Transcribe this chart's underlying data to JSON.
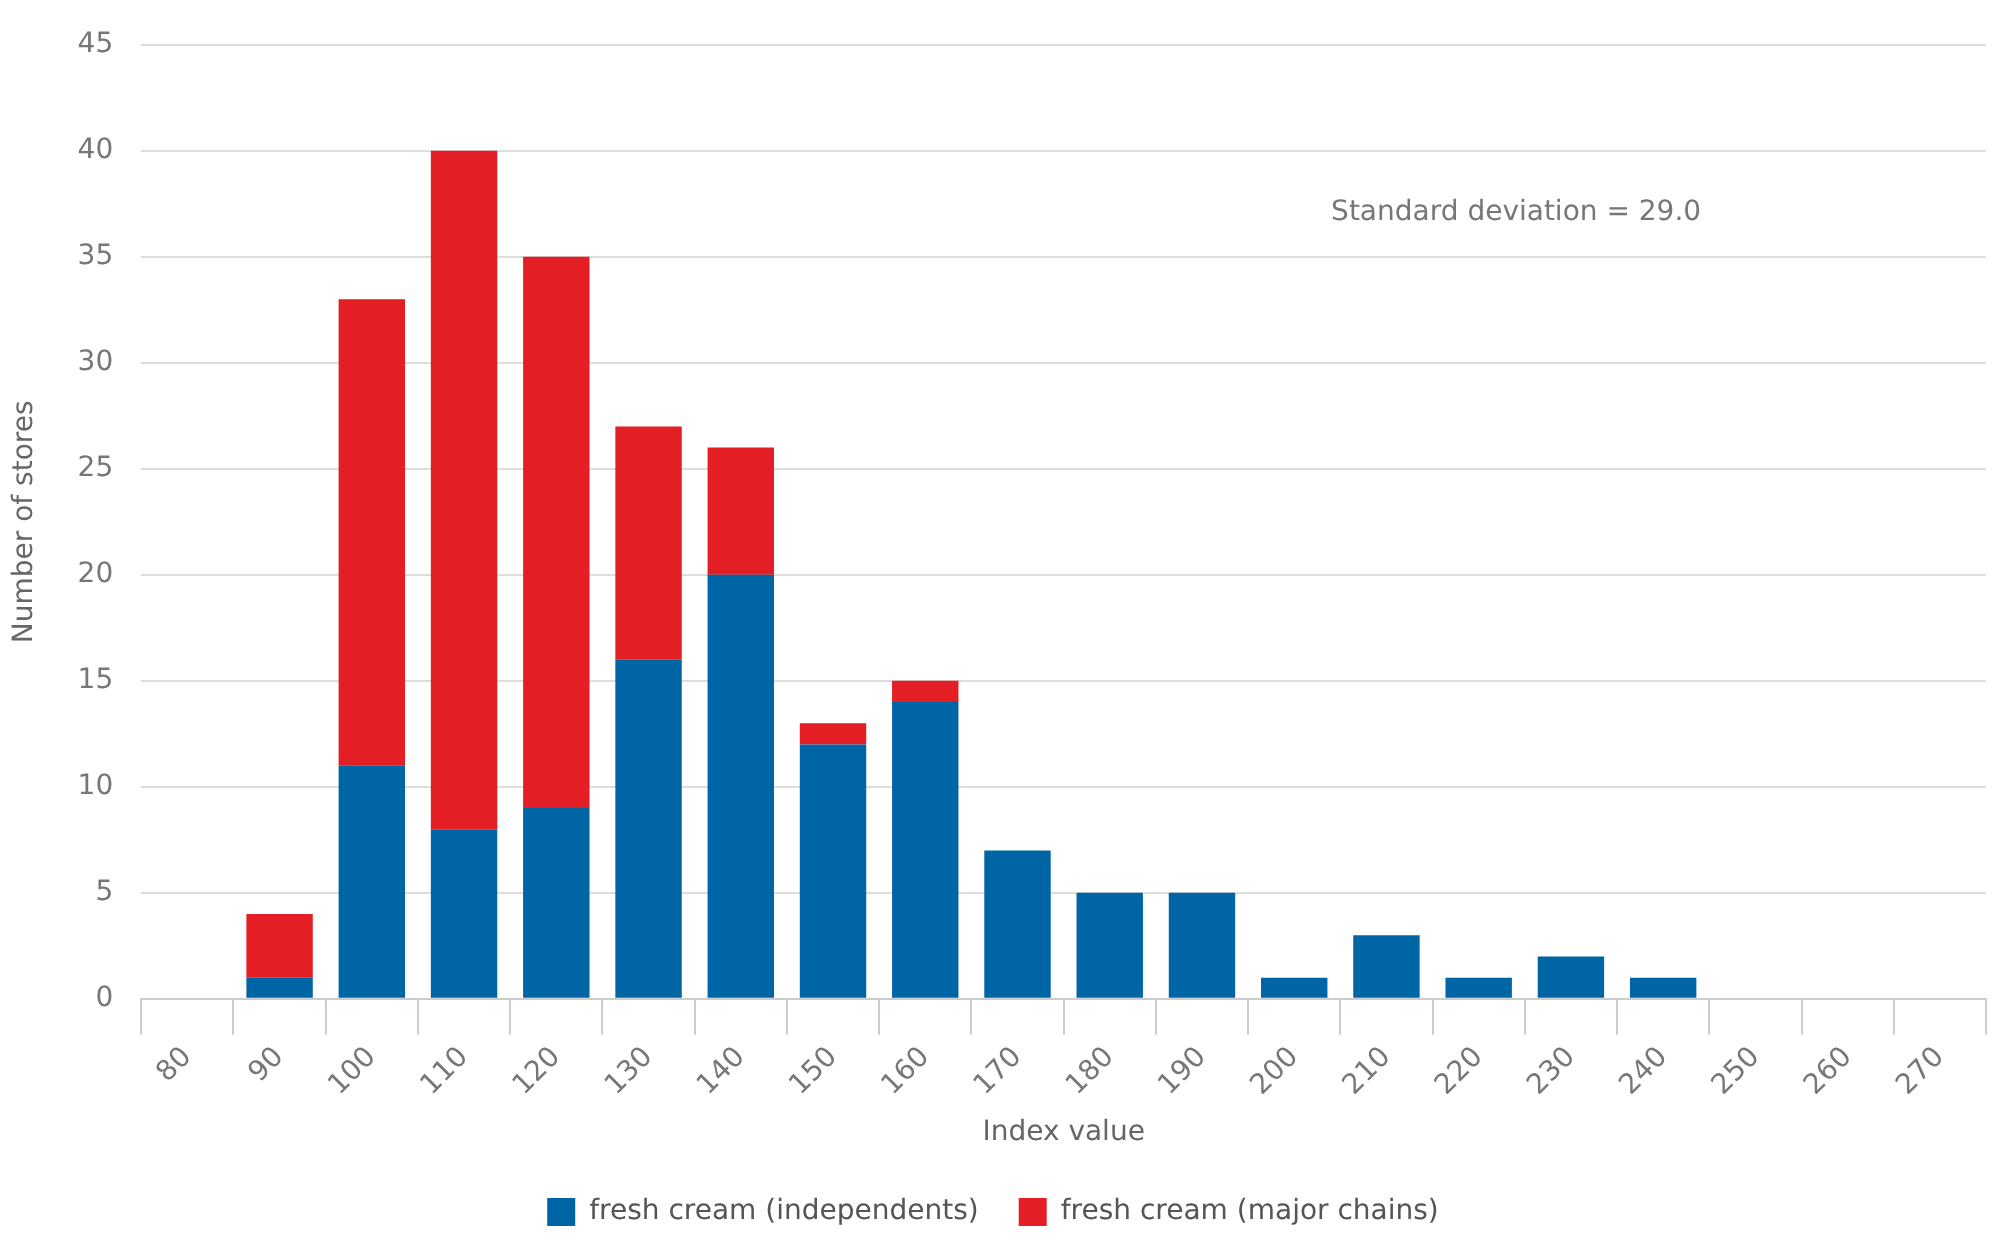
{
  "chart_data": {
    "type": "bar",
    "stacked": true,
    "xlabel": "Index value",
    "ylabel": "Number of stores",
    "categories": [
      "80",
      "90",
      "100",
      "110",
      "120",
      "130",
      "140",
      "150",
      "160",
      "170",
      "180",
      "190",
      "200",
      "210",
      "220",
      "230",
      "240",
      "250",
      "260",
      "270"
    ],
    "series": [
      {
        "name": "fresh cream (independents)",
        "color": "#0065a4",
        "values": [
          0,
          1,
          11,
          8,
          9,
          16,
          20,
          12,
          14,
          7,
          5,
          5,
          1,
          3,
          1,
          2,
          1,
          0,
          0,
          0
        ]
      },
      {
        "name": "fresh cream (major chains)",
        "color": "#e31e25",
        "values": [
          0,
          3,
          22,
          32,
          26,
          11,
          6,
          1,
          1,
          0,
          0,
          0,
          0,
          0,
          0,
          0,
          0,
          0,
          0,
          0
        ]
      }
    ],
    "ylim": [
      0,
      45
    ],
    "yticks": [
      0,
      5,
      10,
      15,
      20,
      25,
      30,
      35,
      40,
      45
    ],
    "grid": "y",
    "legend": "bottom",
    "annotations": [
      "Standard deviation = 29.0"
    ]
  }
}
